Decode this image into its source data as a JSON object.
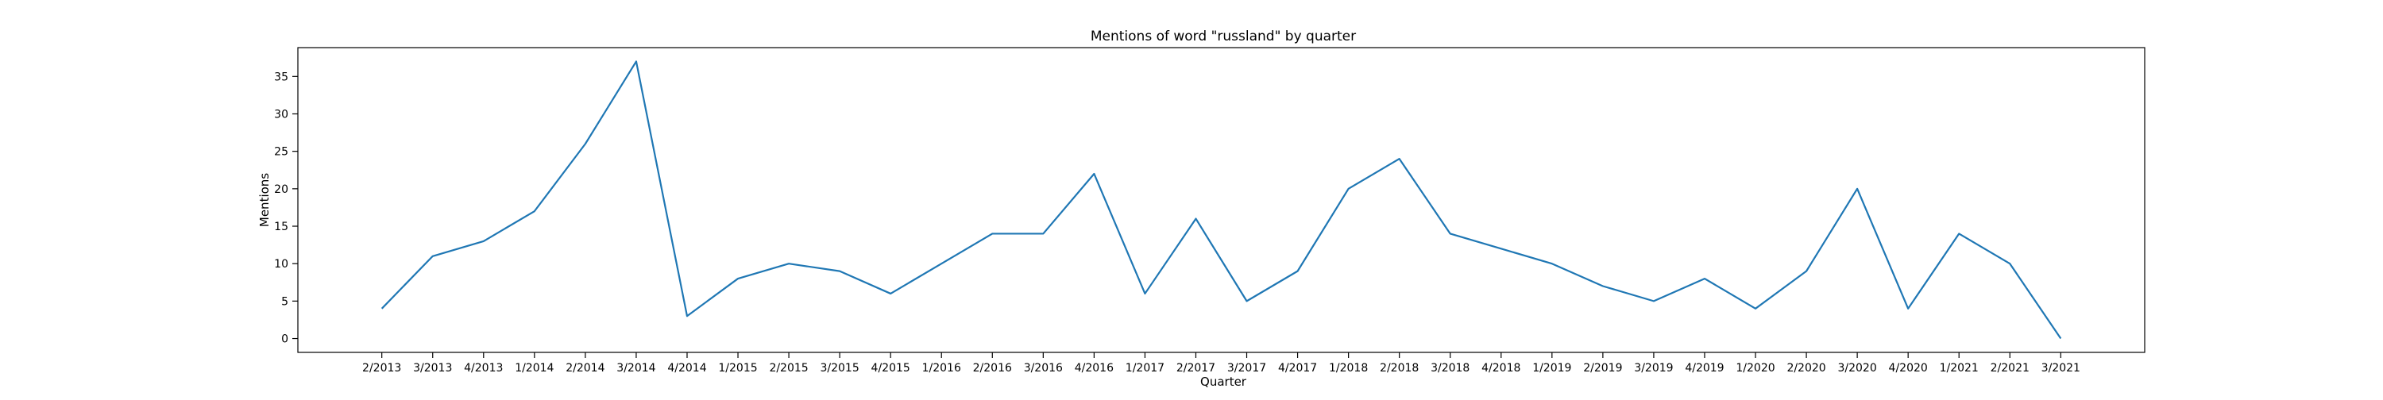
{
  "chart_data": {
    "type": "line",
    "title": "Mentions of word \"russland\" by quarter",
    "xlabel": "Quarter",
    "ylabel": "Mentions",
    "categories": [
      "2/2013",
      "3/2013",
      "4/2013",
      "1/2014",
      "2/2014",
      "3/2014",
      "4/2014",
      "1/2015",
      "2/2015",
      "3/2015",
      "4/2015",
      "1/2016",
      "2/2016",
      "3/2016",
      "4/2016",
      "1/2017",
      "2/2017",
      "3/2017",
      "4/2017",
      "1/2018",
      "2/2018",
      "3/2018",
      "4/2018",
      "1/2019",
      "2/2019",
      "3/2019",
      "4/2019",
      "1/2020",
      "2/2020",
      "3/2020",
      "4/2020",
      "1/2021",
      "2/2021",
      "3/2021"
    ],
    "series": [
      {
        "values": [
          4,
          11,
          13,
          17,
          26,
          37,
          3,
          8,
          10,
          9,
          6,
          10,
          14,
          14,
          22,
          6,
          16,
          5,
          9,
          20,
          24,
          14,
          12,
          10,
          7,
          5,
          8,
          4,
          9,
          20,
          4,
          14,
          10,
          0
        ],
        "color": "#1f77b4"
      }
    ],
    "ylim": [
      -1.85,
      38.85
    ],
    "yticks": [
      0,
      5,
      10,
      15,
      20,
      25,
      30,
      35
    ],
    "grid": false,
    "legend": "none"
  }
}
